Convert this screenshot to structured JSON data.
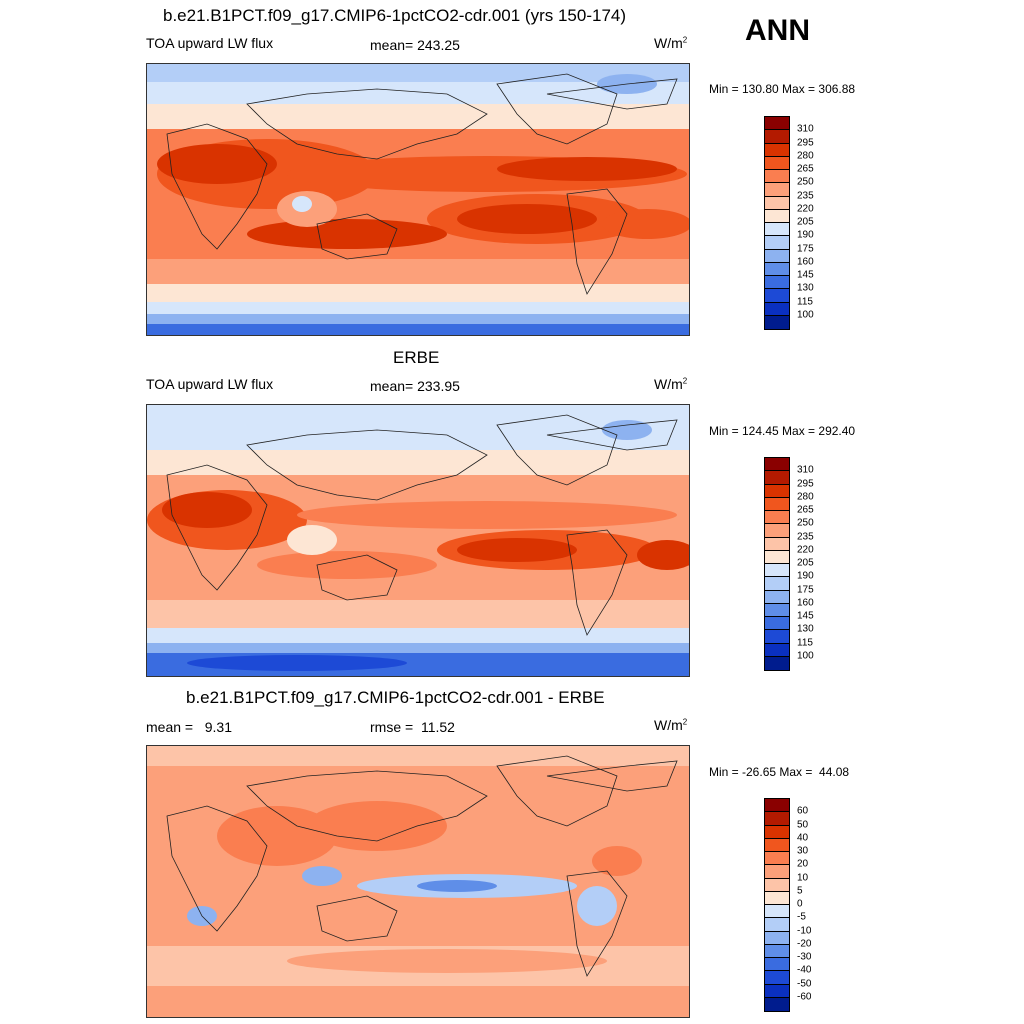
{
  "season": "ANN",
  "panels": [
    {
      "title": "b.e21.B1PCT.f09_g17.CMIP6-1pctCO2-cdr.001 (yrs 150-174)",
      "left_label": "TOA upward LW flux",
      "center_label": "mean= 243.25",
      "units": "W/m",
      "units_sup": "2",
      "minmax": "Min = 130.80 Max = 306.88",
      "kind": "absolute"
    },
    {
      "title": "ERBE",
      "left_label": "TOA upward LW flux",
      "center_label": "mean= 233.95",
      "units": "W/m",
      "units_sup": "2",
      "minmax": "Min = 124.45 Max = 292.40",
      "kind": "absolute"
    },
    {
      "title": "b.e21.B1PCT.f09_g17.CMIP6-1pctCO2-cdr.001 - ERBE",
      "left_label": "mean =   9.31",
      "center_label": "rmse =  11.52",
      "units": "W/m",
      "units_sup": "2",
      "minmax": "Min = -26.65 Max =  44.08",
      "kind": "difference"
    }
  ],
  "colorbar_abs": {
    "labels": [
      "310",
      "295",
      "280",
      "265",
      "250",
      "235",
      "220",
      "205",
      "190",
      "175",
      "160",
      "145",
      "130",
      "115",
      "100"
    ],
    "colors": [
      "#8a0000",
      "#b31a00",
      "#d93300",
      "#f0561e",
      "#fa7e50",
      "#fca07a",
      "#fdc4a8",
      "#fde6d4",
      "#d6e6fb",
      "#b3cef7",
      "#8db2f0",
      "#5f8ee8",
      "#3a6ce0",
      "#1d4ad6",
      "#0a30c0",
      "#001c8e"
    ]
  },
  "colorbar_diff": {
    "labels": [
      "60",
      "50",
      "40",
      "30",
      "20",
      "10",
      "5",
      "0",
      "-5",
      "-10",
      "-20",
      "-30",
      "-40",
      "-50",
      "-60"
    ],
    "colors": [
      "#8a0000",
      "#b31a00",
      "#d93300",
      "#f0561e",
      "#fa7e50",
      "#fca07a",
      "#fdc4a8",
      "#fde6d4",
      "#d6e6fb",
      "#b3cef7",
      "#8db2f0",
      "#5f8ee8",
      "#3a6ce0",
      "#1d4ad6",
      "#0a30c0",
      "#001c8e"
    ]
  }
}
